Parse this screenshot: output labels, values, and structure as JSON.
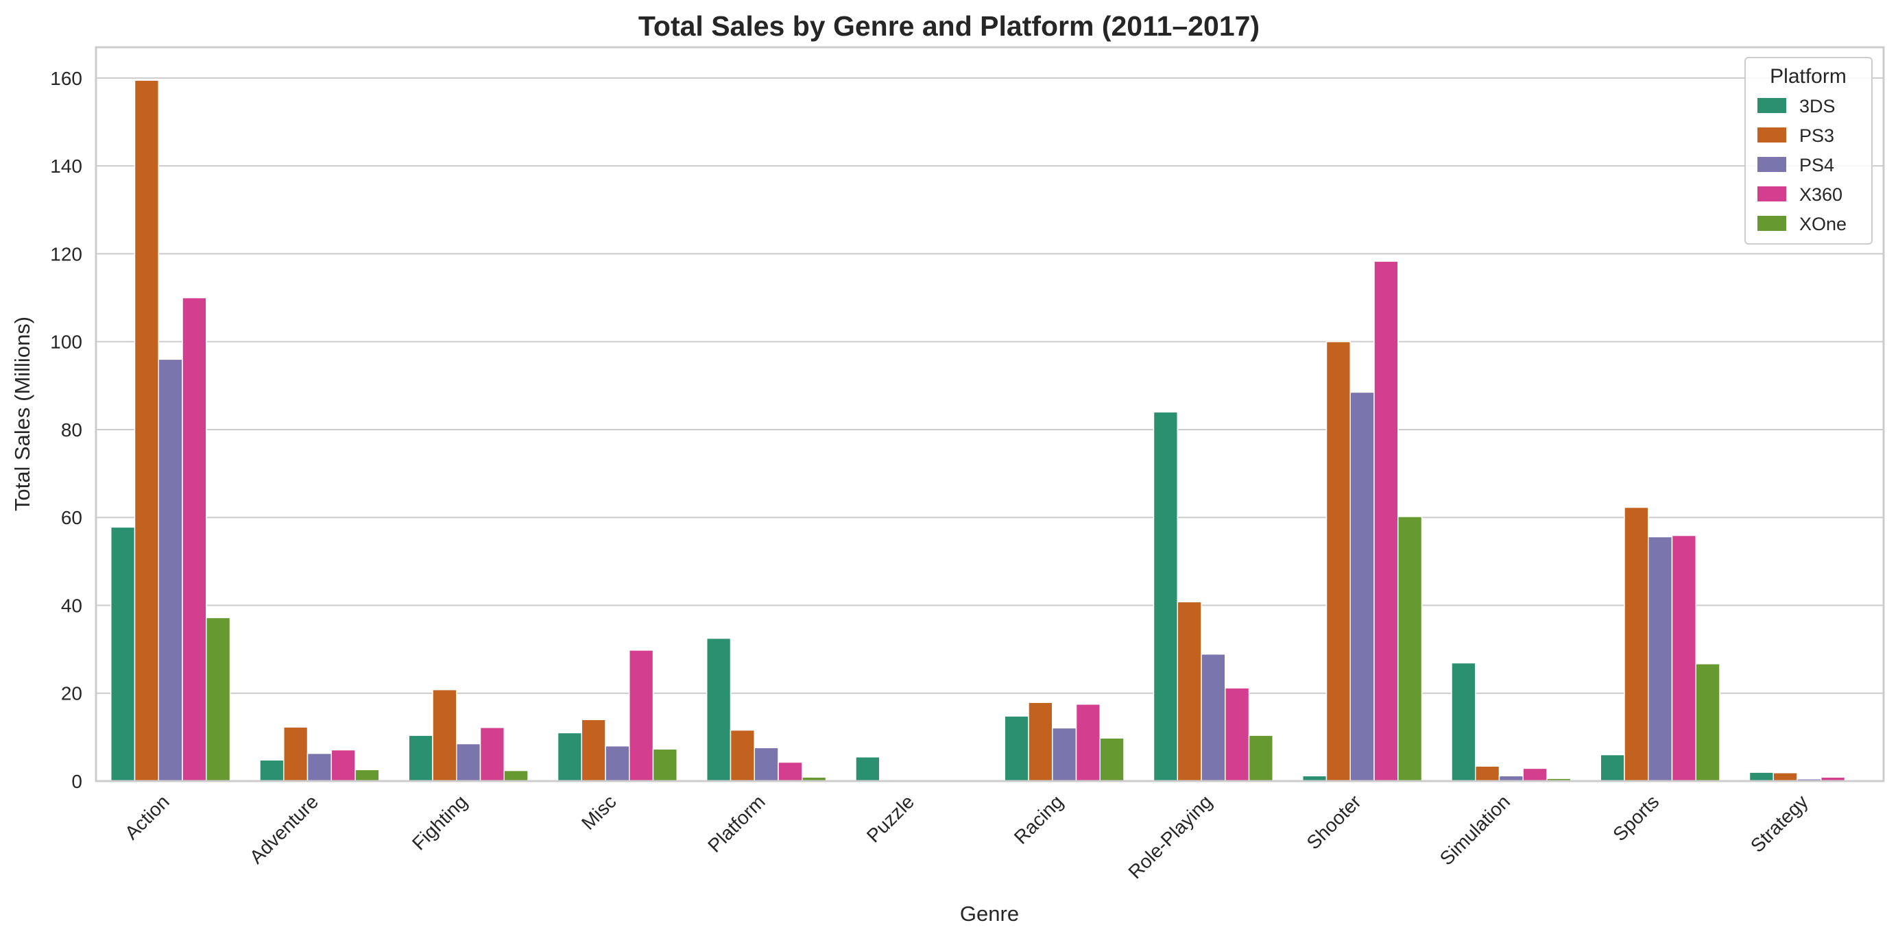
{
  "chart_data": {
    "type": "bar",
    "title": "Total Sales by Genre and Platform (2011–2017)",
    "xlabel": "Genre",
    "ylabel": "Total Sales (Millions)",
    "ylim": [
      0,
      167
    ],
    "yticks": [
      0,
      20,
      40,
      60,
      80,
      100,
      120,
      140,
      160
    ],
    "grid": true,
    "legend": {
      "title": "Platform",
      "placement": "top-right"
    },
    "categories": [
      "Action",
      "Adventure",
      "Fighting",
      "Misc",
      "Platform",
      "Puzzle",
      "Racing",
      "Role-Playing",
      "Shooter",
      "Simulation",
      "Sports",
      "Strategy"
    ],
    "series": [
      {
        "name": "3DS",
        "color": "#2a9070",
        "values": [
          57.8,
          4.8,
          10.4,
          11.0,
          32.5,
          5.5,
          14.8,
          84.0,
          1.2,
          26.9,
          6.0,
          2.0
        ]
      },
      {
        "name": "PS3",
        "color": "#c3621e",
        "values": [
          159.5,
          12.3,
          20.8,
          14.0,
          11.6,
          0.0,
          17.9,
          40.8,
          100.0,
          3.4,
          62.3,
          1.9
        ]
      },
      {
        "name": "PS4",
        "color": "#7a75ad",
        "values": [
          96.0,
          6.3,
          8.5,
          8.0,
          7.6,
          0.0,
          12.1,
          28.9,
          88.5,
          1.2,
          55.6,
          0.5
        ]
      },
      {
        "name": "X360",
        "color": "#d33f8e",
        "values": [
          110.0,
          7.1,
          12.2,
          29.8,
          4.3,
          0.0,
          17.5,
          21.2,
          118.3,
          2.9,
          55.9,
          0.9
        ]
      },
      {
        "name": "XOne",
        "color": "#66992f",
        "values": [
          37.2,
          2.6,
          2.4,
          7.3,
          0.9,
          0.0,
          9.8,
          10.4,
          60.2,
          0.6,
          26.7,
          0.0
        ]
      }
    ]
  }
}
